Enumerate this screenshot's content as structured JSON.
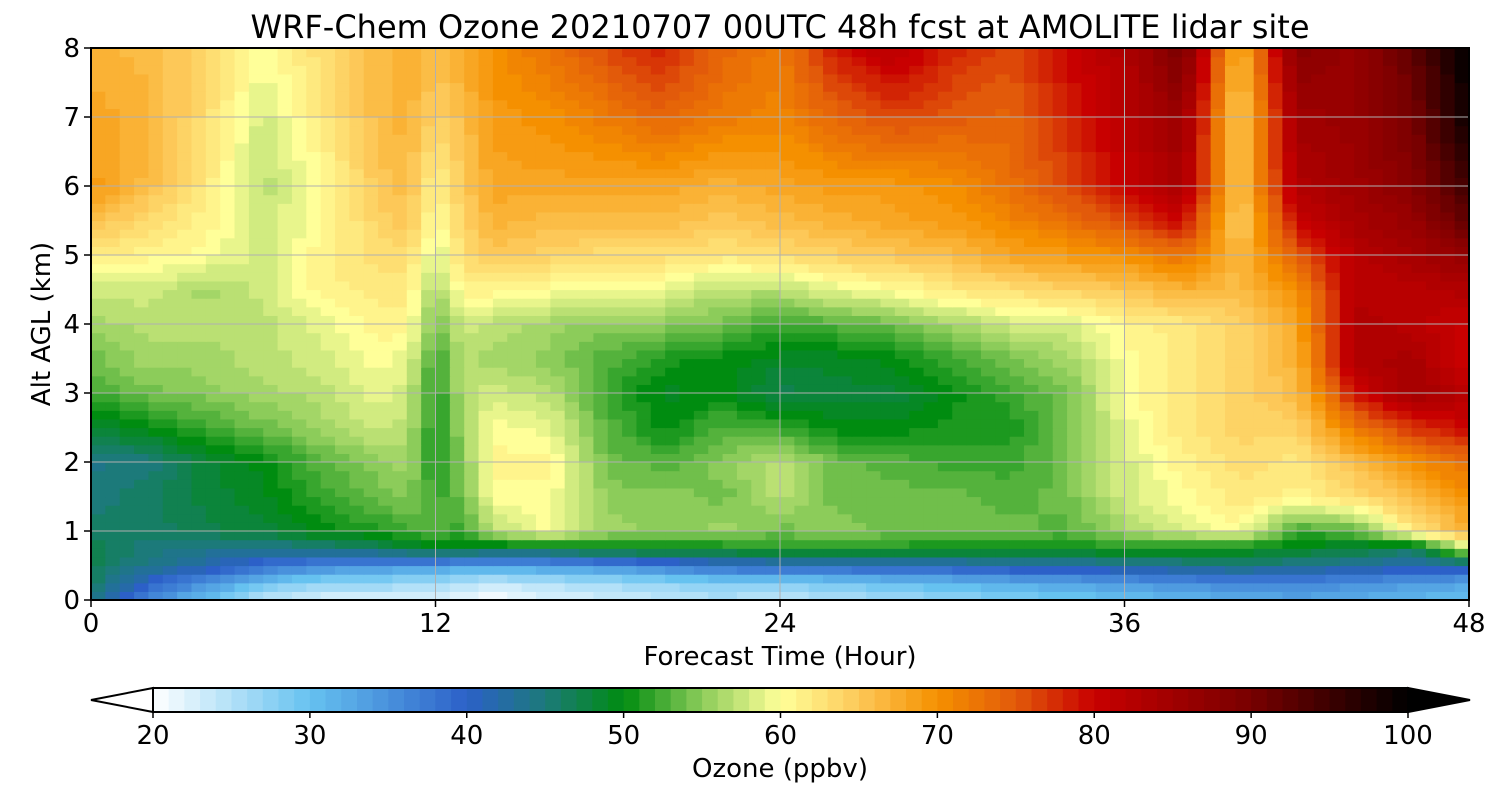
{
  "chart_data": {
    "type": "heatmap",
    "subtype": "filled-contour time-height cross section",
    "title": "WRF-Chem Ozone  20210707 00UTC 48h fcst at AMOLITE lidar site",
    "xlabel": "Forecast Time (Hour)",
    "ylabel": "Alt AGL (km)",
    "xlim": [
      0,
      48
    ],
    "ylim": [
      0,
      8
    ],
    "x_ticks": [
      "0",
      "12",
      "24",
      "36",
      "48"
    ],
    "y_ticks": [
      "0",
      "1",
      "2",
      "3",
      "4",
      "5",
      "6",
      "7",
      "8"
    ],
    "grid": true,
    "colorbar": {
      "label": "Ozone  (ppbv)",
      "orientation": "horizontal",
      "placement": "bottom",
      "range": [
        20,
        100
      ],
      "extend": "both",
      "ticks": [
        "20",
        "30",
        "40",
        "50",
        "60",
        "70",
        "80",
        "90",
        "100"
      ],
      "color_stops": [
        {
          "value": 20,
          "color": "#ffffff"
        },
        {
          "value": 30,
          "color": "#66c2f0"
        },
        {
          "value": 40,
          "color": "#2c60c8"
        },
        {
          "value": 45,
          "color": "#1c7a7a"
        },
        {
          "value": 50,
          "color": "#008c10"
        },
        {
          "value": 55,
          "color": "#8ccc5a"
        },
        {
          "value": 60,
          "color": "#ffff99"
        },
        {
          "value": 65,
          "color": "#fdc858"
        },
        {
          "value": 70,
          "color": "#f59000"
        },
        {
          "value": 75,
          "color": "#e25a0a"
        },
        {
          "value": 80,
          "color": "#c80000"
        },
        {
          "value": 90,
          "color": "#780000"
        },
        {
          "value": 100,
          "color": "#000000"
        }
      ]
    },
    "x": [
      0,
      2,
      4,
      6,
      8,
      10,
      11,
      12,
      13,
      14,
      16,
      18,
      20,
      22,
      24,
      26,
      28,
      30,
      32,
      34,
      36,
      38,
      40,
      42,
      44,
      46,
      48
    ],
    "y": [
      0,
      0.25,
      0.5,
      0.75,
      1,
      1.5,
      2,
      2.5,
      3,
      3.5,
      4,
      4.5,
      5,
      5.5,
      6,
      7,
      8
    ],
    "z": [
      [
        45,
        36,
        30,
        24,
        22,
        22,
        22,
        22,
        21,
        20,
        22,
        23,
        24,
        25,
        24,
        25,
        26,
        27,
        28,
        29,
        30,
        31,
        32,
        33,
        32,
        31,
        30
      ],
      [
        46,
        40,
        35,
        30,
        27,
        27,
        26,
        26,
        25,
        24,
        25,
        26,
        27,
        28,
        28,
        29,
        30,
        31,
        32,
        33,
        34,
        35,
        36,
        36,
        35,
        34,
        33
      ],
      [
        47,
        44,
        42,
        38,
        36,
        35,
        34,
        34,
        33,
        33,
        34,
        35,
        37,
        39,
        40,
        40,
        41,
        41,
        42,
        42,
        43,
        44,
        45,
        44,
        43,
        42,
        42
      ],
      [
        47,
        45,
        44,
        44,
        45,
        46,
        48,
        49,
        49,
        48,
        48,
        50,
        50,
        50,
        51,
        51,
        51,
        50,
        50,
        50,
        51,
        50,
        50,
        49,
        48,
        46,
        58
      ],
      [
        46,
        46,
        47,
        48,
        50,
        51,
        52,
        53,
        52,
        57,
        60,
        56,
        55,
        56,
        54,
        55,
        54,
        54,
        54,
        53,
        56,
        58,
        60,
        52,
        53,
        62,
        67
      ],
      [
        45,
        46,
        48,
        49,
        52,
        54,
        55,
        52,
        54,
        60,
        60,
        55,
        55,
        54,
        57,
        54,
        54,
        54,
        53,
        54,
        58,
        60,
        62,
        61,
        63,
        66,
        70
      ],
      [
        44,
        45,
        48,
        50,
        53,
        55,
        56,
        51,
        55,
        61,
        61,
        54,
        53,
        55,
        57,
        54,
        53,
        52,
        52,
        54,
        58,
        61,
        63,
        62,
        66,
        70,
        73
      ],
      [
        48,
        50,
        52,
        54,
        56,
        58,
        57,
        51,
        56,
        60,
        59,
        53,
        50,
        53,
        52,
        50,
        50,
        51,
        51,
        54,
        59,
        62,
        64,
        64,
        72,
        77,
        80
      ],
      [
        52,
        54,
        55,
        56,
        57,
        59,
        58,
        51,
        57,
        58,
        57,
        52,
        49,
        50,
        47,
        48,
        48,
        50,
        52,
        54,
        60,
        62,
        64,
        66,
        79,
        85,
        82
      ],
      [
        54,
        56,
        56,
        57,
        58,
        60,
        59,
        52,
        57,
        56,
        55,
        53,
        51,
        50,
        49,
        49,
        50,
        52,
        54,
        56,
        60,
        62,
        64,
        67,
        83,
        84,
        79
      ],
      [
        56,
        57,
        57,
        57,
        59,
        61,
        61,
        54,
        58,
        57,
        56,
        55,
        55,
        54,
        52,
        53,
        54,
        56,
        58,
        58,
        61,
        62,
        64,
        68,
        83,
        82,
        80
      ],
      [
        58,
        58,
        56,
        58,
        61,
        62,
        62,
        56,
        61,
        61,
        60,
        60,
        59,
        57,
        57,
        59,
        60,
        62,
        63,
        64,
        65,
        67,
        66,
        70,
        82,
        82,
        83
      ],
      [
        62,
        61,
        60,
        58,
        61,
        63,
        63,
        58,
        63,
        65,
        64,
        63,
        63,
        62,
        63,
        64,
        65,
        66,
        68,
        69,
        70,
        73,
        66,
        75,
        82,
        84,
        87
      ],
      [
        66,
        63,
        61,
        58,
        60,
        64,
        65,
        60,
        64,
        67,
        66,
        66,
        66,
        65,
        66,
        67,
        68,
        69,
        71,
        73,
        76,
        80,
        64,
        80,
        84,
        86,
        92
      ],
      [
        69,
        66,
        62,
        57,
        60,
        65,
        66,
        61,
        65,
        68,
        68,
        68,
        68,
        67,
        68,
        69,
        69,
        70,
        73,
        76,
        80,
        84,
        65,
        83,
        85,
        88,
        95
      ],
      [
        68,
        67,
        63,
        58,
        62,
        66,
        67,
        64,
        66,
        69,
        70,
        72,
        74,
        72,
        71,
        74,
        76,
        75,
        74,
        78,
        82,
        86,
        64,
        85,
        86,
        90,
        99
      ],
      [
        67,
        66,
        64,
        60,
        63,
        66,
        68,
        66,
        68,
        70,
        73,
        76,
        78,
        74,
        72,
        79,
        82,
        78,
        76,
        80,
        83,
        90,
        66,
        88,
        86,
        92,
        100
      ]
    ]
  }
}
